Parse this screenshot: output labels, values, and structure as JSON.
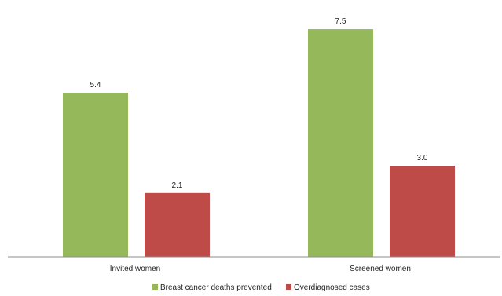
{
  "chart_data": {
    "type": "bar",
    "categories": [
      "Invited women",
      "Screened women"
    ],
    "series": [
      {
        "name": "Breast cancer deaths prevented",
        "values": [
          5.4,
          7.5
        ],
        "color": "#94B85A"
      },
      {
        "name": "Overdiagnosed cases",
        "values": [
          2.1,
          3.0
        ],
        "color": "#BE4B48"
      }
    ],
    "value_labels": [
      [
        "5.4",
        "7.5"
      ],
      [
        "2.1",
        "3.0"
      ]
    ],
    "ylim": [
      0,
      8.2
    ],
    "grid": false,
    "legend_position": "bottom",
    "axis_color": "#8C8C8C"
  }
}
